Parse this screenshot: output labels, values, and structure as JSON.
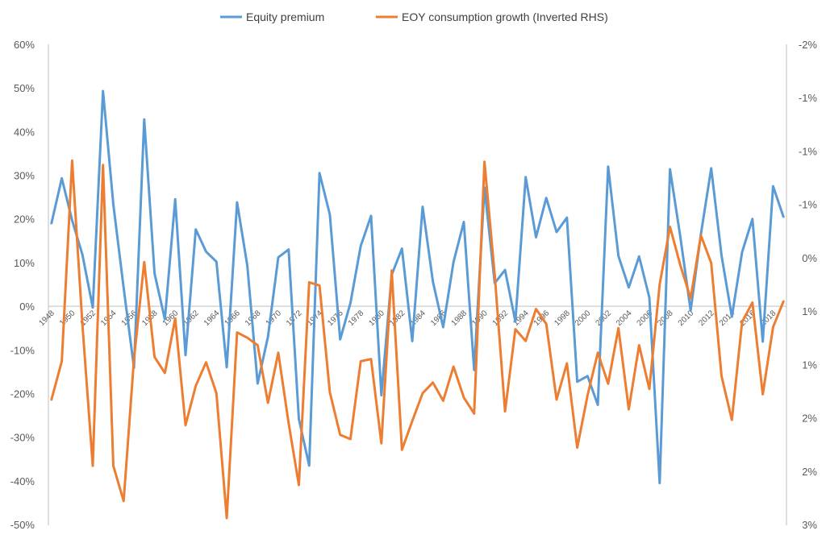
{
  "chart_data": {
    "type": "line",
    "title": "",
    "xlabel": "",
    "ylabel": "",
    "x": [
      1948,
      1949,
      1950,
      1951,
      1952,
      1953,
      1954,
      1955,
      1956,
      1957,
      1958,
      1959,
      1960,
      1961,
      1962,
      1963,
      1964,
      1965,
      1966,
      1967,
      1968,
      1969,
      1970,
      1971,
      1972,
      1973,
      1974,
      1975,
      1976,
      1977,
      1978,
      1979,
      1980,
      1981,
      1982,
      1983,
      1984,
      1985,
      1986,
      1987,
      1988,
      1989,
      1990,
      1991,
      1992,
      1993,
      1994,
      1995,
      1996,
      1997,
      1998,
      1999,
      2000,
      2001,
      2002,
      2003,
      2004,
      2005,
      2006,
      2007,
      2008,
      2009,
      2010,
      2011,
      2012,
      2013,
      2014,
      2015,
      2016,
      2017,
      2018,
      2019
    ],
    "x_tick_labels": [
      "1948",
      "1950",
      "1952",
      "1954",
      "1956",
      "1958",
      "1960",
      "1962",
      "1964",
      "1966",
      "1968",
      "1970",
      "1972",
      "1974",
      "1976",
      "1978",
      "1980",
      "1982",
      "1984",
      "1986",
      "1988",
      "1990",
      "1992",
      "1994",
      "1996",
      "1998",
      "2000",
      "2002",
      "2004",
      "2006",
      "2008",
      "2010",
      "2012",
      "2014",
      "2016",
      "2018"
    ],
    "left_axis": {
      "ylim": [
        -50,
        60
      ],
      "ticks": [
        "60%",
        "50%",
        "40%",
        "30%",
        "20%",
        "10%",
        "0%",
        "-10%",
        "-20%",
        "-30%",
        "-40%",
        "-50%"
      ]
    },
    "right_axis": {
      "inverted": true,
      "ylim": [
        -2.0,
        2.5
      ],
      "ticks": [
        "-2%",
        "-1%",
        "-1%",
        "-1%",
        "0%",
        "1%",
        "1%",
        "2%",
        "2%",
        "3%"
      ]
    },
    "legend_position": "top-center",
    "grid": false,
    "series": [
      {
        "name": "Equity premium",
        "axis": "left",
        "color": "#5b9bd5",
        "values": [
          19.0,
          29.3,
          19.7,
          11.8,
          -0.3,
          49.3,
          23.3,
          4.2,
          -14.1,
          42.8,
          7.5,
          -3.0,
          24.5,
          -11.2,
          17.6,
          12.5,
          10.2,
          -14.0,
          23.8,
          9.3,
          -17.7,
          -7.0,
          11.2,
          13.0,
          -25.8,
          -36.5,
          30.5,
          21.0,
          -7.6,
          0.7,
          13.8,
          20.7,
          -20.4,
          7.2,
          13.2,
          -8.0,
          22.8,
          5.6,
          -4.8,
          10.1,
          19.3,
          -14.6,
          27.2,
          5.3,
          8.3,
          -3.5,
          29.6,
          15.8,
          24.8,
          17.0,
          20.3,
          -17.3,
          -16.0,
          -22.6,
          32.0,
          11.5,
          4.3,
          11.4,
          2.0,
          -40.5,
          31.4,
          15.9,
          -1.0,
          16.5,
          31.6,
          11.6,
          -2.4,
          12.4,
          20.0,
          -8.1,
          27.5,
          20.5
        ]
      },
      {
        "name": "EOY consumption growth (Inverted RHS)",
        "axis": "right",
        "color": "#ed7d31",
        "values": [
          1.33,
          0.97,
          -0.91,
          0.63,
          1.95,
          -0.87,
          1.95,
          2.28,
          0.95,
          0.04,
          0.93,
          1.08,
          0.57,
          1.57,
          1.2,
          0.98,
          1.27,
          2.44,
          0.7,
          0.75,
          0.82,
          1.36,
          0.89,
          1.55,
          2.13,
          0.23,
          0.26,
          1.26,
          1.66,
          1.7,
          0.97,
          0.95,
          1.74,
          0.12,
          1.8,
          1.53,
          1.27,
          1.17,
          1.34,
          1.02,
          1.31,
          1.46,
          -0.9,
          0.16,
          1.44,
          0.67,
          0.78,
          0.48,
          0.62,
          1.33,
          0.99,
          1.78,
          1.29,
          0.89,
          1.18,
          0.66,
          1.42,
          0.82,
          1.23,
          0.25,
          -0.29,
          0.07,
          0.38,
          -0.21,
          0.05,
          1.11,
          1.52,
          0.6,
          0.42,
          1.28,
          0.65,
          0.41
        ]
      }
    ]
  }
}
